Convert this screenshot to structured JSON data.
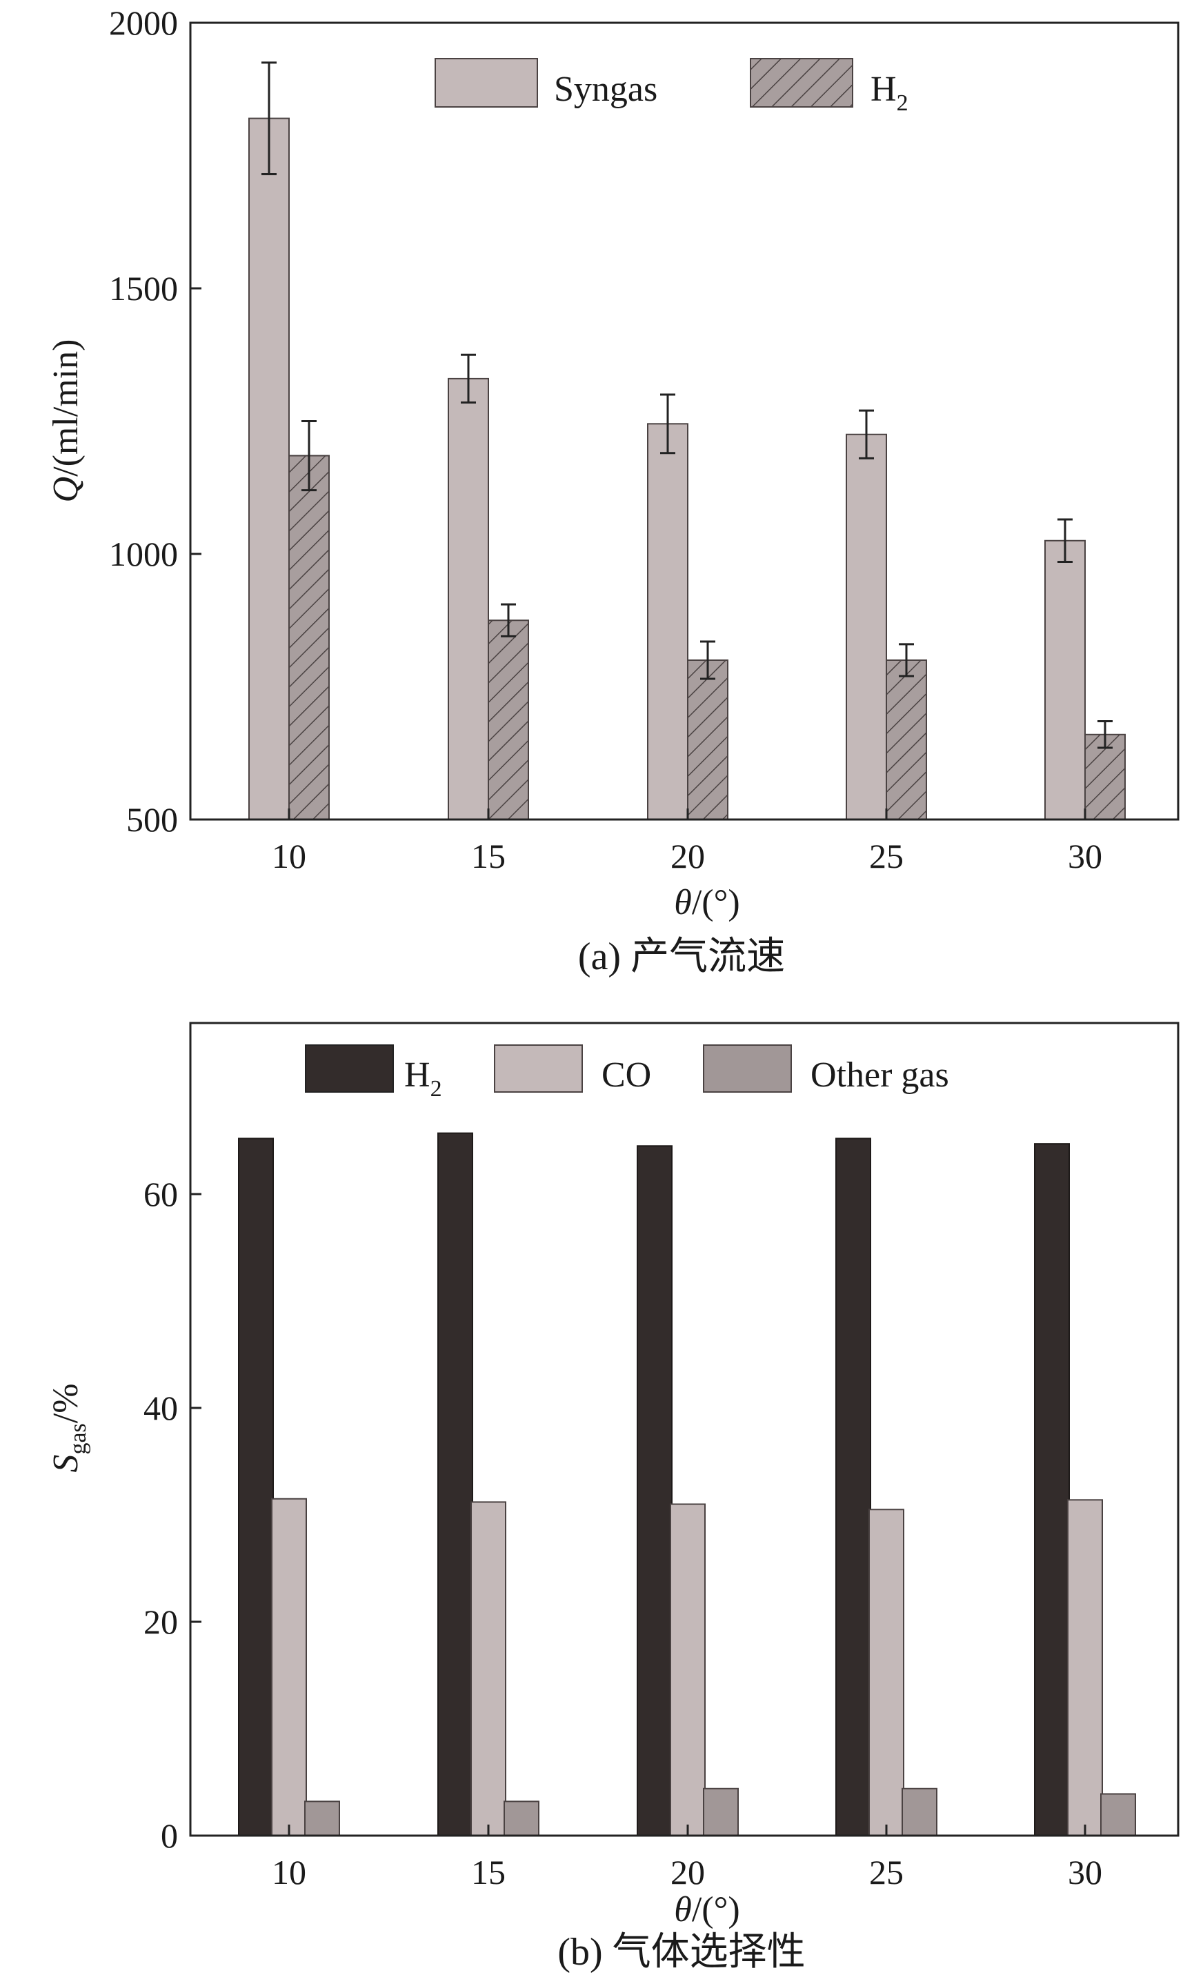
{
  "chart_data": [
    {
      "type": "bar",
      "caption": "(a) 产气流速",
      "xlabel_symbol": "θ",
      "xlabel_unit": "/(°)",
      "ylabel_symbol": "Q",
      "ylabel_unit": "/(ml/min)",
      "categories": [
        "10",
        "15",
        "20",
        "25",
        "30"
      ],
      "ylim": [
        500,
        2000
      ],
      "yticks": [
        500,
        1000,
        1500,
        2000
      ],
      "legend_position": "top-center",
      "series": [
        {
          "name": "Syngas",
          "values": [
            1820,
            1330,
            1245,
            1225,
            1025
          ],
          "errors": [
            105,
            45,
            55,
            45,
            40
          ],
          "color": "#c4b9b9",
          "pattern": "solid"
        },
        {
          "name": "H",
          "name_sub": "2",
          "values": [
            1185,
            875,
            800,
            800,
            660
          ],
          "errors": [
            65,
            30,
            35,
            30,
            25
          ],
          "color": "#a89e9e",
          "pattern": "hatched"
        }
      ]
    },
    {
      "type": "bar",
      "caption": "(b) 气体选择性",
      "xlabel_symbol": "θ",
      "xlabel_unit": "/(°)",
      "ylabel_symbol": "S",
      "ylabel_sub": "gas",
      "ylabel_unit": "/%",
      "categories": [
        "10",
        "15",
        "20",
        "25",
        "30"
      ],
      "ylim": [
        0,
        76
      ],
      "yticks": [
        0,
        20,
        40,
        60
      ],
      "legend_position": "top-center",
      "series": [
        {
          "name": "H",
          "name_sub": "2",
          "values": [
            65.2,
            65.7,
            64.5,
            65.2,
            64.7
          ],
          "color": "#332c2b"
        },
        {
          "name": "CO",
          "values": [
            31.5,
            31.2,
            31.0,
            30.5,
            31.4
          ],
          "color": "#c4b9b9"
        },
        {
          "name": "Other gas",
          "values": [
            3.2,
            3.2,
            4.4,
            4.4,
            3.9
          ],
          "color": "#a19797"
        }
      ]
    }
  ]
}
